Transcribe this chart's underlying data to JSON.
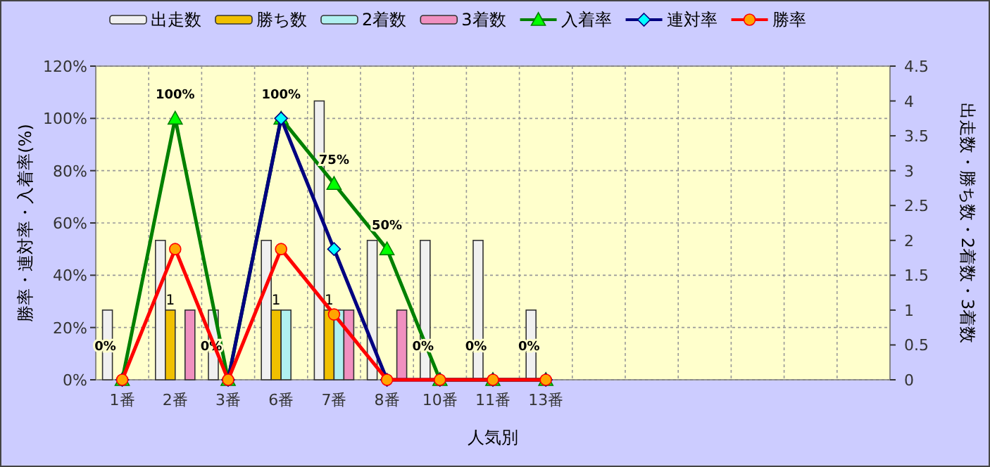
{
  "chart_data": {
    "type": "bar",
    "xlabel": "人気別",
    "ylabel": "勝率・連対率・入着率(%)",
    "y2label": "出走数・勝ち数・2着数・3着数",
    "categories": [
      "1番",
      "2番",
      "3番",
      "6番",
      "7番",
      "8番",
      "10番",
      "11番",
      "13番",
      null,
      null,
      null,
      null,
      null,
      null
    ],
    "series": [
      {
        "name": "出走数",
        "type": "bar",
        "axis": "y2",
        "color": "#f0f0f0",
        "values": [
          1,
          2,
          1,
          2,
          4,
          2,
          2,
          2,
          1,
          null,
          null,
          null,
          null,
          null,
          null
        ]
      },
      {
        "name": "勝ち数",
        "type": "bar",
        "axis": "y2",
        "color": "#f0c000",
        "values": [
          0,
          1,
          0,
          1,
          1,
          0,
          0,
          0,
          0,
          null,
          null,
          null,
          null,
          null,
          null
        ],
        "value_labels": [
          null,
          "1",
          null,
          "1",
          "1",
          null,
          null,
          null,
          null,
          null,
          null,
          null,
          null,
          null,
          null
        ]
      },
      {
        "name": "2着数",
        "type": "bar",
        "axis": "y2",
        "color": "#b0f0f0",
        "values": [
          0,
          0,
          0,
          1,
          1,
          0,
          0,
          0,
          0,
          null,
          null,
          null,
          null,
          null,
          null
        ]
      },
      {
        "name": "3着数",
        "type": "bar",
        "axis": "y2",
        "color": "#f090c0",
        "values": [
          0,
          1,
          0,
          0,
          1,
          1,
          0,
          0,
          0,
          null,
          null,
          null,
          null,
          null,
          null
        ]
      },
      {
        "name": "入着率",
        "type": "line",
        "color": "#008000",
        "marker": "triangle",
        "values": [
          0,
          100,
          0,
          100,
          75,
          50,
          0,
          0,
          0,
          null,
          null,
          null,
          null,
          null,
          null
        ],
        "value_labels": [
          "0%",
          "100%",
          "0%",
          "100%",
          "75%",
          "50%",
          "0%",
          "0%",
          "0%",
          null,
          null,
          null,
          null,
          null,
          null
        ]
      },
      {
        "name": "連対率",
        "type": "line",
        "color": "#000080",
        "marker": "diamond",
        "values": [
          0,
          null,
          0,
          100,
          50,
          0,
          0,
          0,
          0,
          null,
          null,
          null,
          null,
          null,
          null
        ]
      },
      {
        "name": "勝率",
        "type": "line",
        "color": "#ff0000",
        "marker": "circle",
        "values": [
          0,
          50,
          0,
          50,
          25,
          0,
          0,
          0,
          0,
          null,
          null,
          null,
          null,
          null,
          null
        ]
      }
    ],
    "ylim": [
      0,
      120
    ],
    "yticks": [
      {
        "value": 0,
        "label": "0%"
      },
      {
        "value": 20,
        "label": "20%"
      },
      {
        "value": 40,
        "label": "40%"
      },
      {
        "value": 60,
        "label": "60%"
      },
      {
        "value": 80,
        "label": "80%"
      },
      {
        "value": 100,
        "label": "100%"
      },
      {
        "value": 120,
        "label": "120%"
      }
    ],
    "y2lim": [
      0,
      4.5
    ],
    "y2ticks": [
      0,
      0.5,
      1,
      1.5,
      2,
      2.5,
      3,
      3.5,
      4,
      4.5
    ],
    "grid": true,
    "legend": "top"
  }
}
